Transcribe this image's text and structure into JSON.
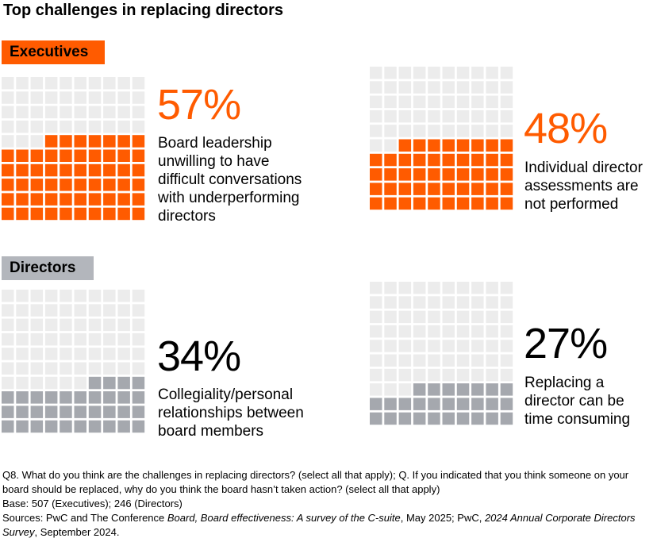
{
  "title": "Top challenges in replacing directors",
  "colors": {
    "executives": "#ff5b00",
    "directors": "#a5a8ae",
    "empty": "#ececec",
    "directors_tag": "#b3b6bc"
  },
  "sections": {
    "executives": {
      "label": "Executives"
    },
    "directors": {
      "label": "Directors"
    }
  },
  "chart_data": [
    {
      "type": "waffle",
      "group": "Executives",
      "value": 57,
      "value_label": "57%",
      "description": [
        "Board leadership",
        "unwilling to have",
        "difficult conversations",
        "with underperforming",
        "directors"
      ],
      "grid": [
        10,
        10
      ],
      "fill_color": "#ff5b00"
    },
    {
      "type": "waffle",
      "group": "Executives",
      "value": 48,
      "value_label": "48%",
      "description": [
        "Individual director",
        "assessments are",
        "not performed"
      ],
      "grid": [
        10,
        10
      ],
      "fill_color": "#ff5b00"
    },
    {
      "type": "waffle",
      "group": "Directors",
      "value": 34,
      "value_label": "34%",
      "description": [
        "Collegiality/personal",
        "relationships between",
        "board members"
      ],
      "grid": [
        10,
        10
      ],
      "fill_color": "#a5a8ae"
    },
    {
      "type": "waffle",
      "group": "Directors",
      "value": 27,
      "value_label": "27%",
      "description": [
        "Replacing a",
        "director can be",
        "time consuming"
      ],
      "grid": [
        10,
        10
      ],
      "fill_color": "#a5a8ae"
    }
  ],
  "footnotes": {
    "question": "Q8. What do you think are the challenges in replacing directors? (select all that apply); Q. If you indicated that you think someone on your board should be replaced, why do you think the board hasn’t taken action? (select all that apply)",
    "base": "Base: 507 (Executives); 246 (Directors)",
    "sources": {
      "prefix": "Sources: PwC and The Conference ",
      "italic_1": "Board, Board effectiveness: A survey of the C-suite",
      "middle": ", May 2025; PwC, ",
      "italic_2": "2024 Annual Corporate Directors Survey",
      "suffix": ", September 2024."
    }
  }
}
